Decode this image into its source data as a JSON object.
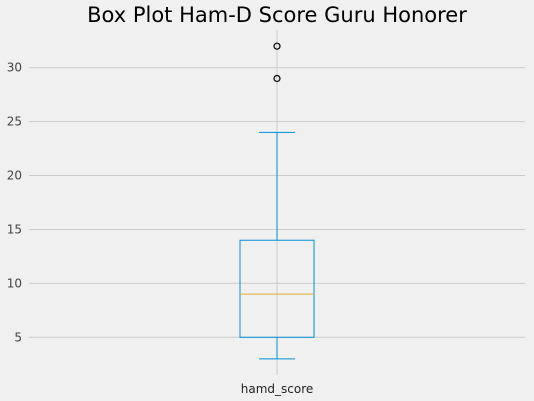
{
  "chart_data": {
    "type": "box",
    "title": "Box Plot Ham-D Score Guru Honorer",
    "categories": [
      "hamd_score"
    ],
    "series": [
      {
        "whisker_low": 3,
        "q1": 5,
        "median": 9,
        "q3": 14,
        "whisker_high": 24,
        "outliers": [
          29,
          32
        ]
      }
    ],
    "yticks": [
      5,
      10,
      15,
      20,
      25,
      30
    ],
    "ylim": [
      1.5,
      33.5
    ],
    "grid": true,
    "legend": "none",
    "colors": {
      "background": "#f0f0f0",
      "grid": "#cbcbcb",
      "box": "#008fd5",
      "median": "#e5ae38",
      "outlier_edge": "#000000"
    }
  }
}
